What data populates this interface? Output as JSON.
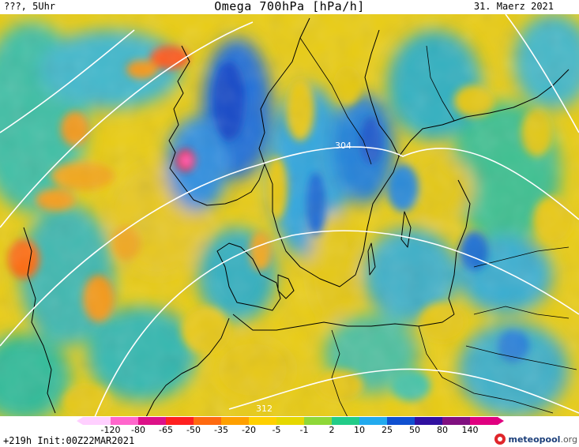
{
  "header": {
    "top_left": "???, 5Uhr",
    "title": "Omega 700hPa [hPa/h]",
    "top_right": "31. Maerz 2021"
  },
  "contours": {
    "labels": [
      "304",
      "312"
    ]
  },
  "legend": {
    "ticks": [
      "-120",
      "-80",
      "-65",
      "-50",
      "-35",
      "-20",
      "-5",
      "-1",
      "2",
      "10",
      "25",
      "50",
      "80",
      "140"
    ],
    "colors": [
      "#ffd0ff",
      "#ff66cc",
      "#dd1188",
      "#ff2020",
      "#ff6a10",
      "#ffa000",
      "#ffd000",
      "#e6d800",
      "#8fd838",
      "#22cc88",
      "#22aaee",
      "#1050d0",
      "#3010a0",
      "#801080",
      "#e00080"
    ]
  },
  "footer": {
    "run_info": "+219h Init:00Z22MAR2021",
    "brand_main": "meteopool",
    "brand_suffix": ".org"
  },
  "palette": {
    "yellow": "#f2cf0f",
    "olive": "#c8c818",
    "green": "#55cc77",
    "teal": "#33c0b0",
    "cyan": "#33a8e0",
    "blue": "#1a60d0",
    "orange": "#f39a1f",
    "red": "#ff5a1a"
  }
}
